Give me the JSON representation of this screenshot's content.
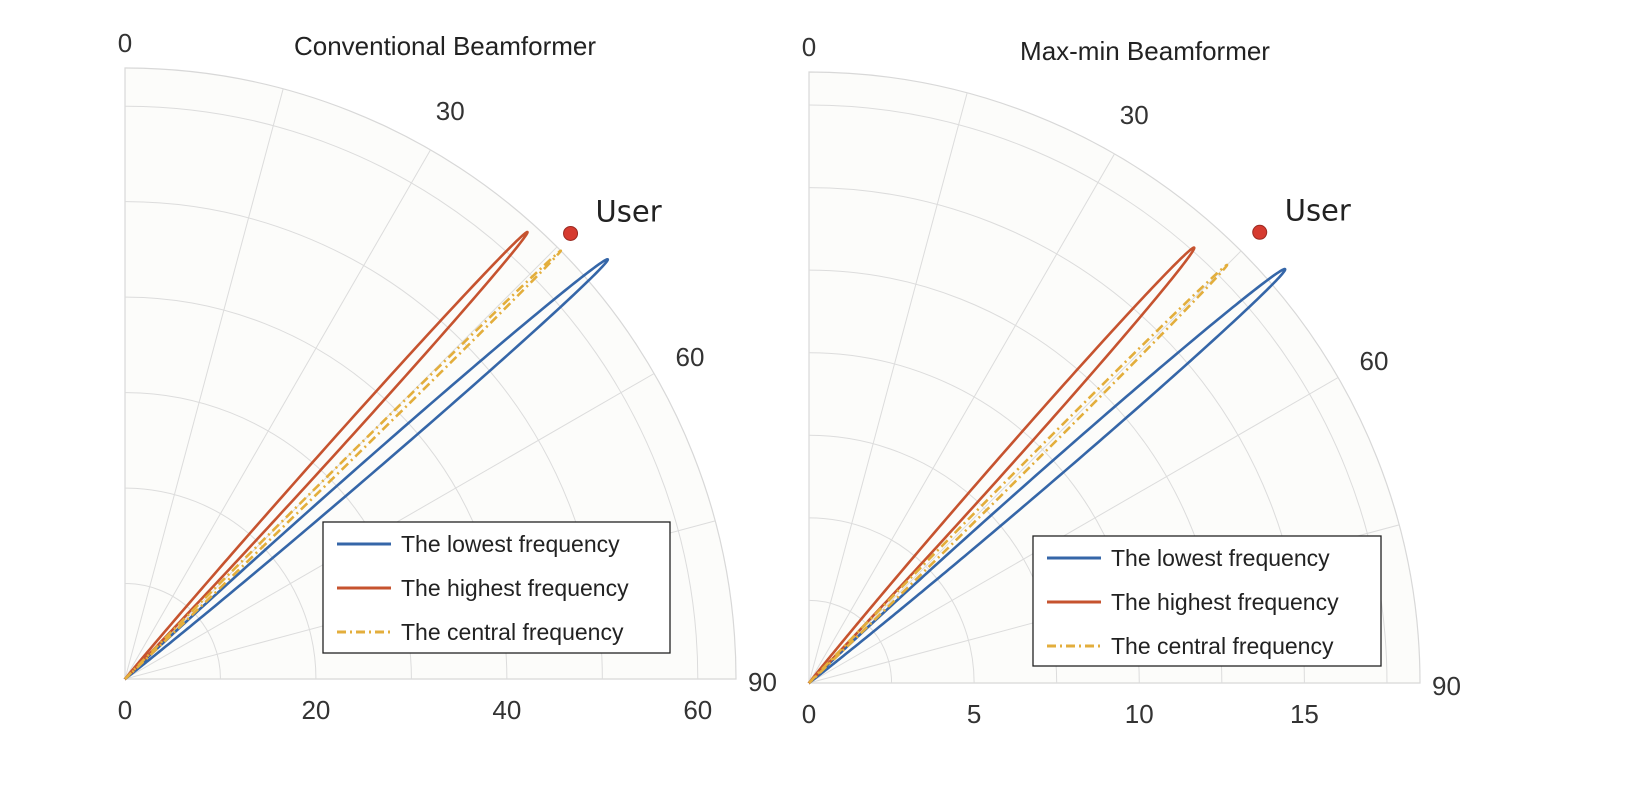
{
  "chart_data": [
    {
      "type": "polar-line",
      "title": "Conventional Beamformer",
      "theta_ticks": [
        "0",
        "30",
        "60",
        "90"
      ],
      "r_ticks": [
        "0",
        "20",
        "40",
        "60"
      ],
      "rlim": [
        0,
        64
      ],
      "theta_range_deg": [
        0,
        90
      ],
      "grid": true,
      "legend_position": "bottom-right",
      "user": {
        "label": "User",
        "angle_deg": 45,
        "r": 66,
        "color": "#d63a2f"
      },
      "series": [
        {
          "name": "The lowest frequency",
          "color": "#3566a8",
          "dash": "solid",
          "peak_r": 67,
          "peak_angle": 49,
          "lobe_width": 1.5
        },
        {
          "name": "The highest frequency",
          "color": "#c6532f",
          "dash": "solid",
          "peak_r": 63,
          "peak_angle": 42,
          "lobe_width": 1.3
        },
        {
          "name": "The central frequency",
          "color": "#e3ae3c",
          "dash": "dashdot",
          "peak_r": 64,
          "peak_angle": 45.5,
          "lobe_width": 0.6
        }
      ]
    },
    {
      "type": "polar-line",
      "title": "Max-min Beamformer",
      "theta_ticks": [
        "0",
        "30",
        "60",
        "90"
      ],
      "r_ticks": [
        "0",
        "5",
        "10",
        "15"
      ],
      "rlim": [
        0,
        18.5
      ],
      "theta_range_deg": [
        0,
        90
      ],
      "grid": true,
      "legend_position": "bottom-right",
      "user": {
        "label": "User",
        "angle_deg": 45,
        "r": 19.3,
        "color": "#d63a2f"
      },
      "series": [
        {
          "name": "The lowest frequency",
          "color": "#3566a8",
          "dash": "solid",
          "peak_r": 19.1,
          "peak_angle": 49,
          "lobe_width": 1.7
        },
        {
          "name": "The highest frequency",
          "color": "#c6532f",
          "dash": "solid",
          "peak_r": 17.6,
          "peak_angle": 41.5,
          "lobe_width": 1.6
        },
        {
          "name": "The central frequency",
          "color": "#e3ae3c",
          "dash": "dashdot",
          "peak_r": 17.9,
          "peak_angle": 45,
          "lobe_width": 0.8
        }
      ]
    }
  ]
}
